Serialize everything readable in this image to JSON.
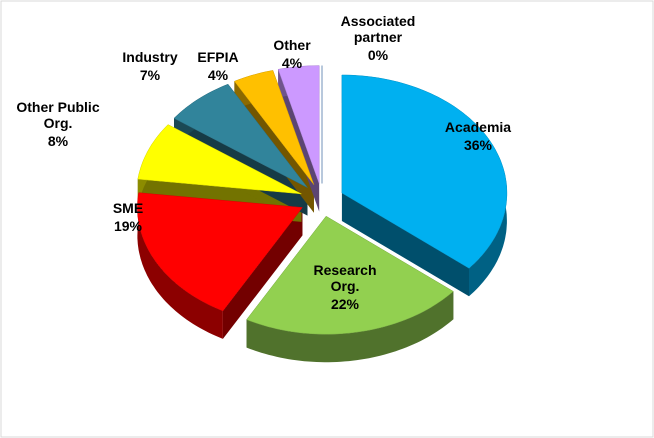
{
  "chart_data": {
    "type": "pie",
    "categories": [
      "Academia",
      "Research Org.",
      "SME",
      "Other Public Org.",
      "Industry",
      "EFPIA",
      "Other",
      "Associated partner"
    ],
    "values": [
      36,
      22,
      19,
      8,
      7,
      4,
      4,
      0
    ],
    "value_labels": [
      "36%",
      "22%",
      "19%",
      "8%",
      "7%",
      "4%",
      "4%",
      "0%"
    ],
    "colors": [
      "#00b0f0",
      "#92d050",
      "#ff0000",
      "#ffff00",
      "#31849b",
      "#ffc000",
      "#cc99ff",
      "#4f81bd"
    ]
  }
}
